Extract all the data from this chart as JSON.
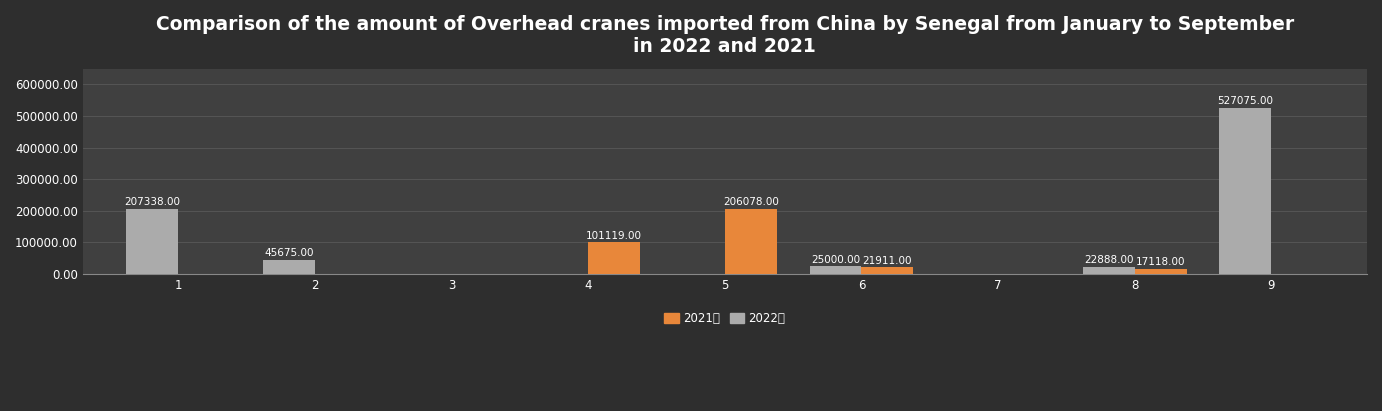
{
  "title": "Comparison of the amount of Overhead cranes imported from China by Senegal from January to September\nin 2022 and 2021",
  "months": [
    1,
    2,
    3,
    4,
    5,
    6,
    7,
    8,
    9
  ],
  "values_2021": [
    0,
    0,
    0,
    101119.0,
    206078.0,
    21911.0,
    0,
    17118.0,
    0
  ],
  "values_2022": [
    207338.0,
    45675.0,
    0,
    0,
    0,
    25000.0,
    0,
    22888.0,
    527075.0
  ],
  "color_2021": "#E8873A",
  "color_2022": "#ABABAB",
  "background_color": "#404040",
  "background_color_dark": "#2E2E2E",
  "text_color": "#FFFFFF",
  "label_2021": "2021年",
  "label_2022": "2022年",
  "ylim": [
    0,
    650000
  ],
  "yticks": [
    0,
    100000,
    200000,
    300000,
    400000,
    500000,
    600000
  ],
  "bar_width": 0.38,
  "title_fontsize": 13.5,
  "annotation_fontsize": 7.5,
  "legend_fontsize": 8.5,
  "tick_fontsize": 8.5
}
